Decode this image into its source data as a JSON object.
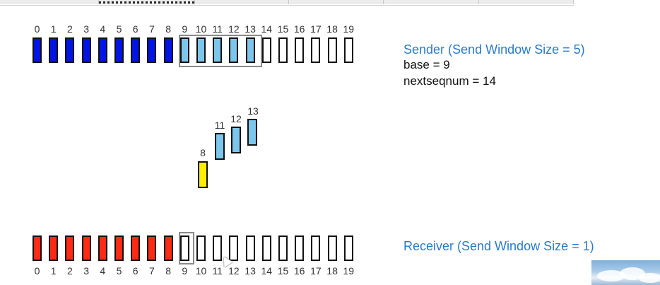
{
  "tabs": [
    "",
    "",
    "",
    "",
    "",
    ""
  ],
  "sender": {
    "title": "Sender (Send Window Size = 5)",
    "base_text": "base = 9",
    "nextseq_text": "nextseqnum = 14",
    "packet_numbers": [
      "0",
      "1",
      "2",
      "3",
      "4",
      "5",
      "6",
      "7",
      "8",
      "9",
      "10",
      "11",
      "12",
      "13",
      "14",
      "15",
      "16",
      "17",
      "18",
      "19"
    ]
  },
  "in_flight": {
    "packets": [
      {
        "label": "8",
        "color": "yellow"
      },
      {
        "label": "11",
        "color": "lightblue"
      },
      {
        "label": "12",
        "color": "lightblue"
      },
      {
        "label": "13",
        "color": "lightblue"
      }
    ]
  },
  "receiver": {
    "title": "Receiver (Send Window Size = 1)",
    "packet_numbers": [
      "0",
      "1",
      "2",
      "3",
      "4",
      "5",
      "6",
      "7",
      "8",
      "9",
      "10",
      "11",
      "12",
      "13",
      "14",
      "15",
      "16",
      "17",
      "18",
      "19"
    ]
  },
  "colors": {
    "acked": "#0014e6",
    "sent_unacked": "#7cc6ec",
    "received": "#ff2a14",
    "ack_packet": "#ffee00",
    "label_blue": "#2a7ac8"
  }
}
